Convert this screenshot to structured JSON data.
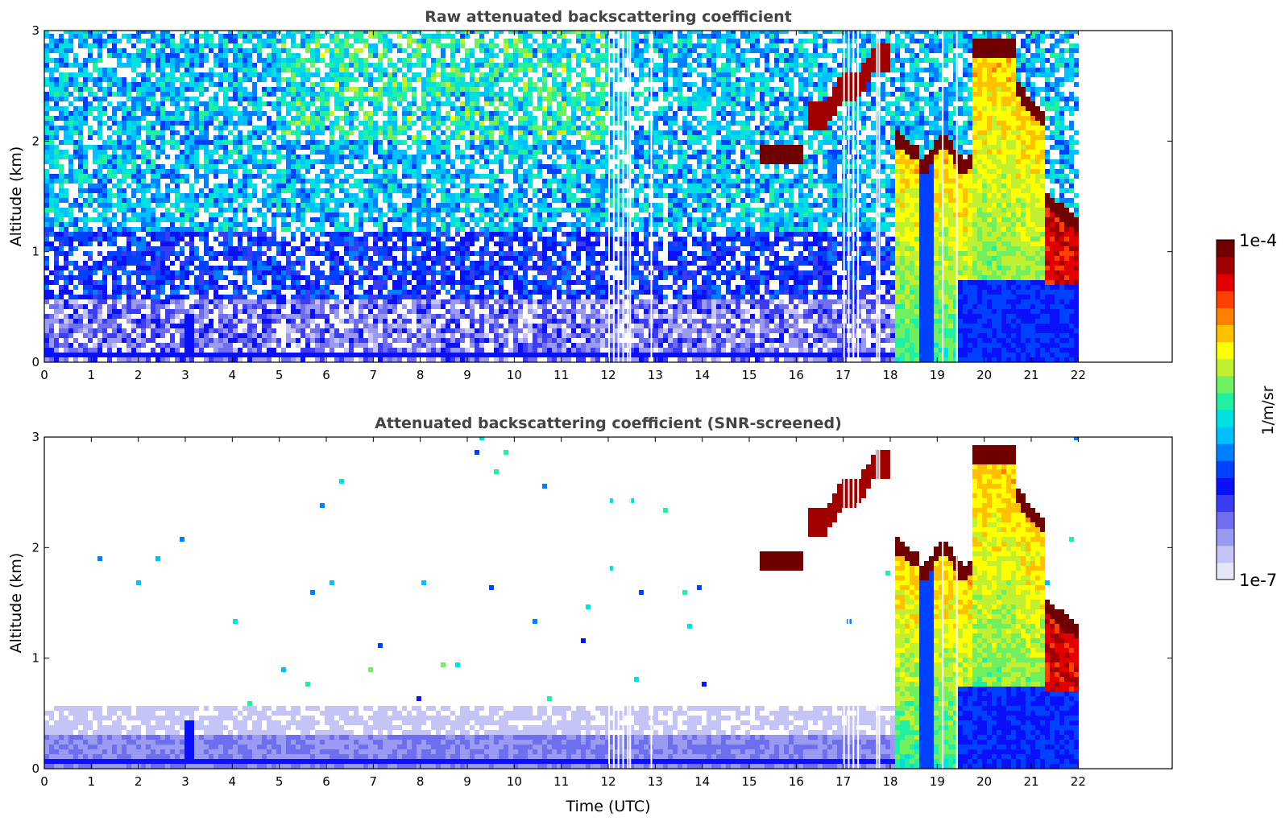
{
  "chart_data": [
    {
      "type": "heatmap",
      "title": "Raw attenuated backscattering coefficient",
      "xlabel": "",
      "ylabel": "Altitude (km)",
      "xlim": [
        0,
        24
      ],
      "ylim": [
        0,
        3
      ],
      "x_ticks": [
        "0",
        "1",
        "2",
        "3",
        "4",
        "5",
        "6",
        "7",
        "8",
        "9",
        "10",
        "11",
        "12",
        "13",
        "14",
        "15",
        "16",
        "17",
        "18",
        "19",
        "20",
        "21",
        "22"
      ],
      "y_ticks": [
        "0",
        "1",
        "2",
        "3"
      ],
      "data_extent_x": [
        0,
        22.1
      ],
      "features": [
        {
          "name": "noise background",
          "x": [
            0,
            22.1
          ],
          "y": [
            0.3,
            3
          ],
          "level": "low-medium, random speckle"
        },
        {
          "name": "near-surface layer",
          "x": [
            0,
            22.1
          ],
          "y": [
            0,
            0.6
          ],
          "level": "low"
        },
        {
          "name": "surface band",
          "x": [
            0,
            22.1
          ],
          "y": [
            0.03,
            0.08
          ],
          "level": "medium"
        },
        {
          "name": "plume near 3 UTC",
          "x": [
            2.9,
            3.15
          ],
          "y": [
            0.1,
            0.45
          ],
          "level": "medium"
        },
        {
          "name": "cloud layer",
          "x": [
            15.2,
            16.1
          ],
          "y": [
            1.8,
            1.95
          ],
          "level": "high"
        },
        {
          "name": "rising cloud top",
          "x": [
            16.2,
            18.0
          ],
          "y": [
            2.1,
            2.8
          ],
          "level": "high"
        },
        {
          "name": "precipitation column",
          "x": [
            18.0,
            22.1
          ],
          "y": [
            0,
            2.9
          ],
          "level": "medium-high"
        },
        {
          "name": "lowering cloud base",
          "x": [
            21.2,
            22.1
          ],
          "y": [
            0.7,
            1.3
          ],
          "level": "high"
        }
      ],
      "data_gaps_x": [
        12.0,
        12.1,
        12.2,
        12.3,
        12.4,
        12.45,
        12.9,
        17.0,
        17.1,
        17.2,
        17.3,
        17.7,
        17.75,
        19.1,
        19.4
      ]
    },
    {
      "type": "heatmap",
      "title": "Attenuated backscattering coefficient (SNR-screened)",
      "xlabel": "Time (UTC)",
      "ylabel": "Altitude (km)",
      "xlim": [
        0,
        24
      ],
      "ylim": [
        0,
        3
      ],
      "x_ticks": [
        "0",
        "1",
        "2",
        "3",
        "4",
        "5",
        "6",
        "7",
        "8",
        "9",
        "10",
        "11",
        "12",
        "13",
        "14",
        "15",
        "16",
        "17",
        "18",
        "19",
        "20",
        "21",
        "22"
      ],
      "y_ticks": [
        "0",
        "1",
        "2",
        "3"
      ],
      "data_extent_x": [
        0,
        22.1
      ],
      "features": [
        {
          "name": "boundary layer",
          "x": [
            0,
            22.1
          ],
          "y": [
            0,
            0.55
          ],
          "level": "low"
        },
        {
          "name": "plume near 3 UTC",
          "x": [
            2.9,
            3.15
          ],
          "y": [
            0.1,
            0.5
          ],
          "level": "medium"
        },
        {
          "name": "cloud layer",
          "x": [
            15.2,
            16.1
          ],
          "y": [
            1.8,
            1.95
          ],
          "level": "saturated"
        },
        {
          "name": "rising cloud top",
          "x": [
            16.2,
            18.0
          ],
          "y": [
            2.1,
            2.8
          ],
          "level": "saturated"
        },
        {
          "name": "precipitation column",
          "x": [
            17.8,
            22.1
          ],
          "y": [
            0,
            2.9
          ],
          "level": "medium-high"
        },
        {
          "name": "lowering cloud base",
          "x": [
            21.2,
            22.1
          ],
          "y": [
            0.7,
            1.3
          ],
          "level": "high"
        }
      ]
    }
  ],
  "colorbar": {
    "label": "1/m/sr",
    "max_label": "1e-4",
    "min_label": "1e-7",
    "scale": "log",
    "colors": [
      "#e6e6fa",
      "#c4c4f6",
      "#9a9af2",
      "#6e6eee",
      "#3c3cf2",
      "#0a10f8",
      "#0040ff",
      "#0080ff",
      "#00c0ff",
      "#00e0e0",
      "#20f0a0",
      "#70f060",
      "#c0f030",
      "#ffff00",
      "#ffc000",
      "#ff8000",
      "#ff4000",
      "#e00000",
      "#a00000",
      "#700000"
    ]
  }
}
